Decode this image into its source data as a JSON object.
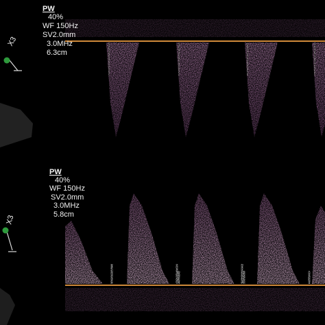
{
  "panels": [
    {
      "mode": "PW",
      "gain": "40%",
      "filter": "WF 150Hz",
      "sample_volume": "SV2.0mm",
      "frequency": "3.0MHz",
      "depth": "6.3cm",
      "zoom": "X3"
    },
    {
      "mode": "PW",
      "gain": "40%",
      "filter": "WF 150Hz",
      "sample_volume": "SV2.0mm",
      "frequency": "3.0MHz",
      "depth": "5.8cm",
      "zoom": "X3"
    }
  ]
}
